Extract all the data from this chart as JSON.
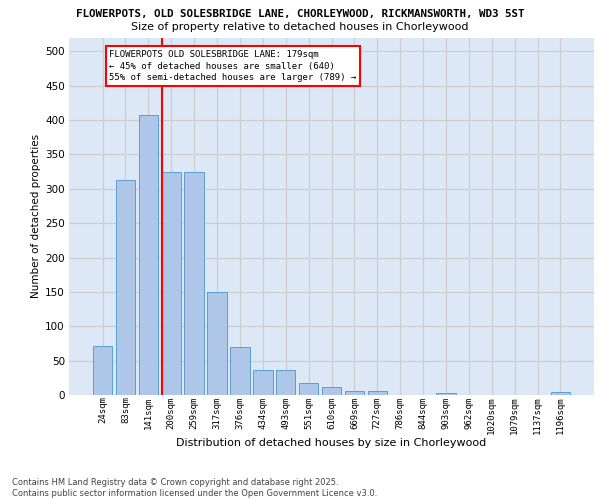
{
  "title_line1": "FLOWERPOTS, OLD SOLESBRIDGE LANE, CHORLEYWOOD, RICKMANSWORTH, WD3 5ST",
  "title_line2": "Size of property relative to detached houses in Chorleywood",
  "xlabel": "Distribution of detached houses by size in Chorleywood",
  "ylabel": "Number of detached properties",
  "categories": [
    "24sqm",
    "83sqm",
    "141sqm",
    "200sqm",
    "259sqm",
    "317sqm",
    "376sqm",
    "434sqm",
    "493sqm",
    "551sqm",
    "610sqm",
    "669sqm",
    "727sqm",
    "786sqm",
    "844sqm",
    "903sqm",
    "962sqm",
    "1020sqm",
    "1079sqm",
    "1137sqm",
    "1196sqm"
  ],
  "values": [
    72,
    313,
    408,
    325,
    325,
    150,
    70,
    37,
    37,
    18,
    11,
    6,
    6,
    0,
    0,
    3,
    0,
    0,
    0,
    0,
    4
  ],
  "bar_color": "#aec6e8",
  "bar_edge_color": "#5a9fd4",
  "vline_pos": 2.58,
  "vline_color": "red",
  "annotation_text": "FLOWERPOTS OLD SOLESBRIDGE LANE: 179sqm\n← 45% of detached houses are smaller (640)\n55% of semi-detached houses are larger (789) →",
  "footer_text": "Contains HM Land Registry data © Crown copyright and database right 2025.\nContains public sector information licensed under the Open Government Licence v3.0.",
  "ylim": [
    0,
    520
  ],
  "yticks": [
    0,
    50,
    100,
    150,
    200,
    250,
    300,
    350,
    400,
    450,
    500
  ],
  "grid_color": "#cccccc",
  "bg_color": "#dce8f5"
}
